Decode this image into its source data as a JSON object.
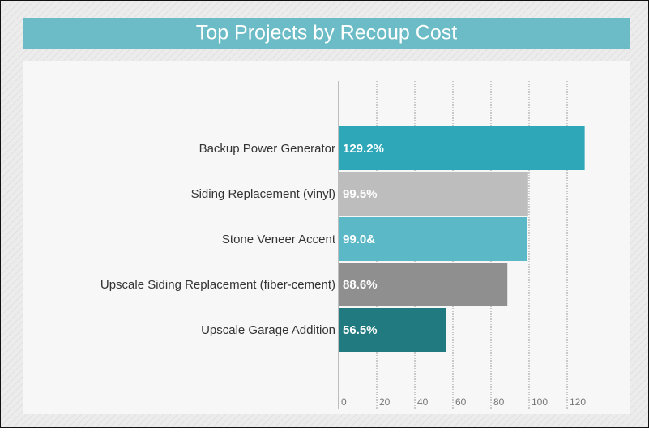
{
  "chart_data": {
    "type": "bar",
    "orientation": "horizontal",
    "title": "Top Projects by Recoup Cost",
    "categories": [
      "Backup Power Generator",
      "Siding Replacement (vinyl)",
      "Stone Veneer Accent",
      "Upscale Siding Replacement (fiber-cement)",
      "Upscale Garage Addition"
    ],
    "values": [
      129.2,
      99.5,
      99.0,
      88.6,
      56.5
    ],
    "value_labels": [
      "129.2%",
      "99.5%",
      "99.0&",
      "88.6%",
      "56.5%"
    ],
    "colors": [
      "#2ea8b8",
      "#bdbdbd",
      "#5bb8c6",
      "#8f8f8f",
      "#217a80"
    ],
    "xlim": [
      0,
      140
    ],
    "xticks": [
      0,
      20,
      40,
      60,
      80,
      100,
      120
    ],
    "grid": true
  }
}
